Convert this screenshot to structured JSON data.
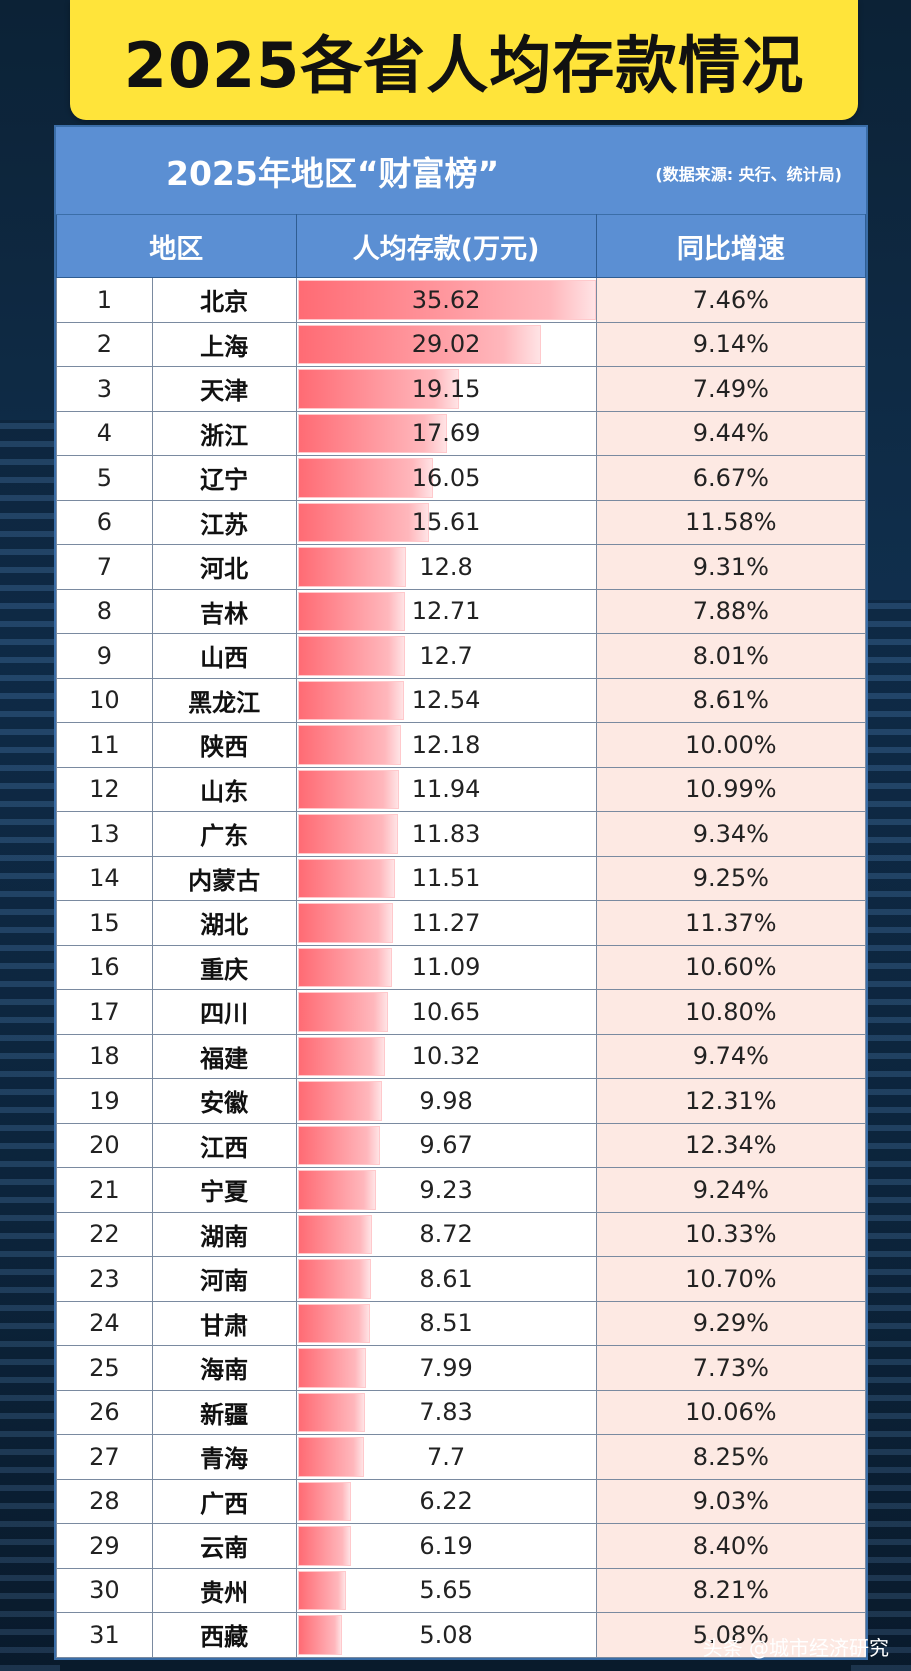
{
  "banner_title": "2025各省人均存款情况",
  "subtitle": "2025年地区“财富榜”",
  "source": "(数据来源: 央行、统计局)",
  "headers": [
    "地区",
    "人均存款(万元)",
    "同比增速"
  ],
  "footer": "头条 @城市经济研究",
  "chart_data": {
    "type": "table",
    "ranks": [
      1,
      2,
      3,
      4,
      5,
      6,
      7,
      8,
      9,
      10,
      11,
      12,
      13,
      14,
      15,
      16,
      17,
      18,
      19,
      20,
      21,
      22,
      23,
      24,
      25,
      26,
      27,
      28,
      29,
      30,
      31
    ],
    "categories": [
      "北京",
      "上海",
      "天津",
      "浙江",
      "辽宁",
      "江苏",
      "河北",
      "吉林",
      "山西",
      "黑龙江",
      "陕西",
      "山东",
      "广东",
      "内蒙古",
      "湖北",
      "重庆",
      "四川",
      "福建",
      "安徽",
      "江西",
      "宁夏",
      "湖南",
      "河南",
      "甘肃",
      "海南",
      "新疆",
      "青海",
      "广西",
      "云南",
      "贵州",
      "西藏"
    ],
    "values": [
      "35.62",
      "29.02",
      "19.15",
      "17.69",
      "16.05",
      "15.61",
      "12.8",
      "12.71",
      "12.7",
      "12.54",
      "12.18",
      "11.94",
      "11.83",
      "11.51",
      "11.27",
      "11.09",
      "10.65",
      "10.32",
      "9.98",
      "9.67",
      "9.23",
      "8.72",
      "8.61",
      "8.51",
      "7.99",
      "7.83",
      "7.7",
      "6.22",
      "6.19",
      "5.65",
      "5.08"
    ],
    "growth": [
      "7.46%",
      "9.14%",
      "7.49%",
      "9.44%",
      "6.67%",
      "11.58%",
      "9.31%",
      "7.88%",
      "8.01%",
      "8.61%",
      "10.00%",
      "10.99%",
      "9.34%",
      "9.25%",
      "11.37%",
      "10.60%",
      "10.80%",
      "9.74%",
      "12.31%",
      "12.34%",
      "9.24%",
      "10.33%",
      "10.70%",
      "9.29%",
      "7.73%",
      "10.06%",
      "8.25%",
      "9.03%",
      "8.40%",
      "8.21%",
      "5.08%"
    ]
  }
}
